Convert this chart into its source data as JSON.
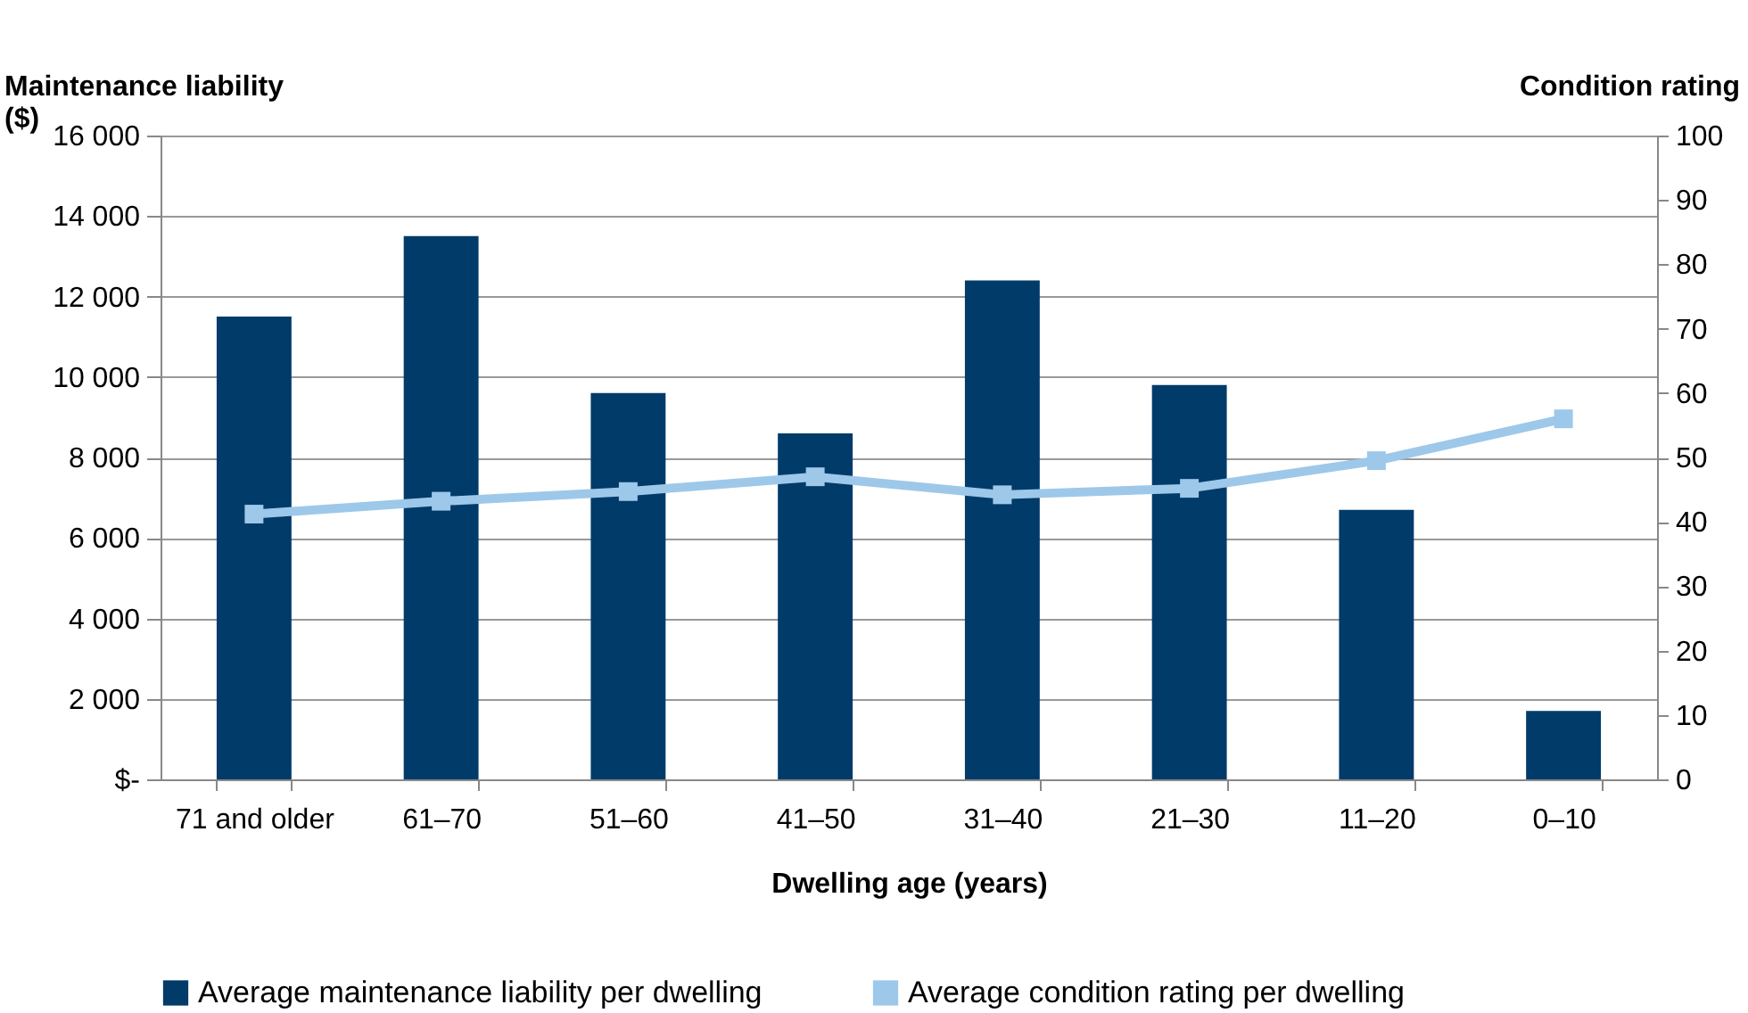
{
  "chart_data": {
    "type": "bar",
    "xlabel": "Dwelling age (years)",
    "ylabel": "Maintenance liability ($)",
    "y2label": "Condition rating",
    "categories": [
      "71 and older",
      "61–70",
      "51–60",
      "41–50",
      "31–40",
      "21–30",
      "11–20",
      "0–10"
    ],
    "series": [
      {
        "name": "Average maintenance liability per dwelling",
        "color": "#003b6a",
        "values": [
          11500,
          13500,
          9600,
          8600,
          12400,
          9800,
          6700,
          1700
        ]
      },
      {
        "name": "Average condition rating per dwelling",
        "type": "line",
        "axis": "y2",
        "color": "#9dc8e9",
        "marker": "square",
        "values": [
          41.2,
          43.2,
          44.7,
          47.0,
          44.2,
          45.2,
          49.5,
          56.0
        ]
      }
    ],
    "ylim": [
      0,
      16000
    ],
    "yticks": [
      {
        "value": 0,
        "label": "$-"
      },
      {
        "value": 2000,
        "label": "2 000"
      },
      {
        "value": 4000,
        "label": "4 000"
      },
      {
        "value": 6000,
        "label": "6 000"
      },
      {
        "value": 8000,
        "label": "8 000"
      },
      {
        "value": 10000,
        "label": "10 000"
      },
      {
        "value": 12000,
        "label": "12 000"
      },
      {
        "value": 14000,
        "label": "14 000"
      },
      {
        "value": 16000,
        "label": "16 000"
      }
    ],
    "y2lim": [
      0,
      100
    ],
    "y2ticks": [
      0,
      10,
      20,
      30,
      40,
      50,
      60,
      70,
      80,
      90,
      100
    ],
    "grid": "y",
    "legend": "bottom"
  }
}
